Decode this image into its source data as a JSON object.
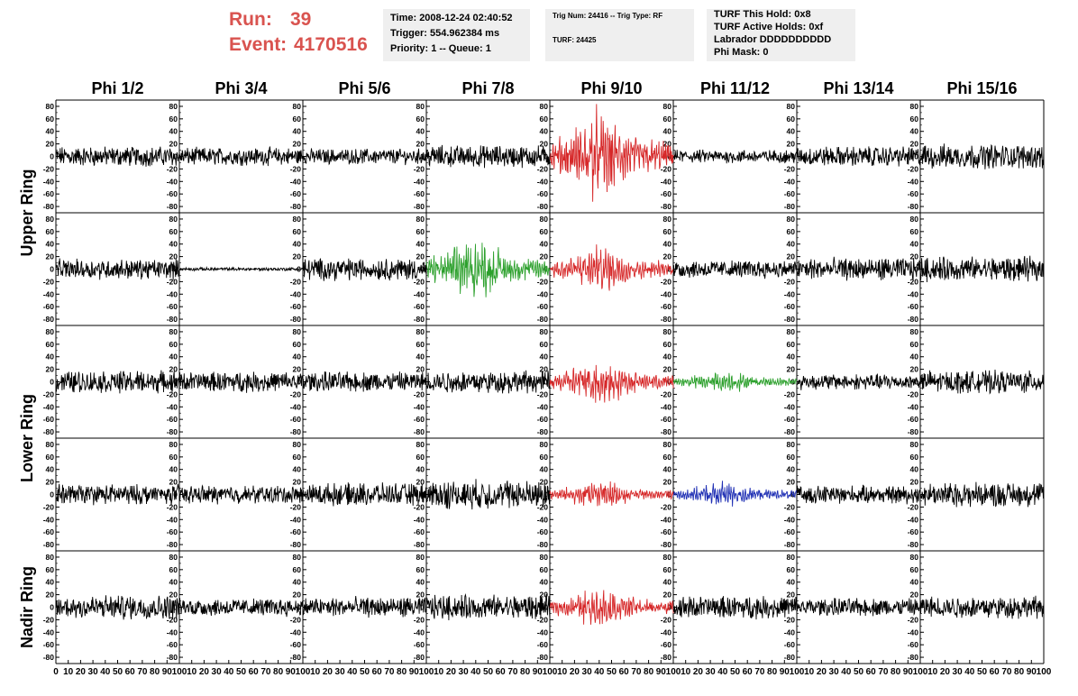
{
  "header": {
    "run_label": "Run:",
    "run_value": "39",
    "event_label": "Event:",
    "event_value": "4170516",
    "time": "Time: 2008-12-24 02:40:52",
    "trigger": "Trigger: 554.962384 ms",
    "priority": "Priority: 1 -- Queue: 1",
    "trig_num": "Trig Num: 24416 -- Trig Type: RF",
    "turf": "TURF: 24425",
    "turf_hold": "TURF This Hold: 0x8",
    "turf_active": "TURF Active Holds: 0xf",
    "labrador": "Labrador DDDDDDDDDD",
    "phi_mask": "Phi Mask: 0"
  },
  "colors": {
    "header_red": "#d9534f",
    "info_bg": "#efefef",
    "trace_black": "#000000",
    "trace_red": "#d62728",
    "trace_green": "#2ca02c",
    "trace_blue": "#1f2fb4"
  },
  "chart_data": {
    "type": "line",
    "columns": [
      "Phi 1/2",
      "Phi 3/4",
      "Phi 5/6",
      "Phi 7/8",
      "Phi 9/10",
      "Phi 11/12",
      "Phi 13/14",
      "Phi 15/16"
    ],
    "row_groups": [
      {
        "label": "Upper Ring",
        "rows": 2
      },
      {
        "label": "Lower Ring",
        "rows": 2
      },
      {
        "label": "Nadir Ring",
        "rows": 1
      }
    ],
    "x_range": [
      0,
      100
    ],
    "x_ticks": [
      "0",
      "10",
      "20",
      "30",
      "40",
      "50",
      "60",
      "70",
      "80",
      "90",
      "100"
    ],
    "y_range": [
      -90,
      90
    ],
    "y_ticks": [
      "80",
      "60",
      "40",
      "20",
      "0",
      "-20",
      "-40",
      "-60",
      "-80"
    ],
    "panels": [
      {
        "row": 0,
        "col": 0,
        "color": "black",
        "amplitude": 18,
        "envelope": "flat"
      },
      {
        "row": 0,
        "col": 1,
        "color": "black",
        "amplitude": 16,
        "envelope": "flat"
      },
      {
        "row": 0,
        "col": 2,
        "color": "black",
        "amplitude": 14,
        "envelope": "flat"
      },
      {
        "row": 0,
        "col": 3,
        "color": "black",
        "amplitude": 20,
        "envelope": "flat"
      },
      {
        "row": 0,
        "col": 4,
        "color": "red",
        "amplitude": 60,
        "envelope": "burst"
      },
      {
        "row": 0,
        "col": 5,
        "color": "black",
        "amplitude": 12,
        "envelope": "flat"
      },
      {
        "row": 0,
        "col": 6,
        "color": "black",
        "amplitude": 18,
        "envelope": "flat"
      },
      {
        "row": 0,
        "col": 7,
        "color": "black",
        "amplitude": 22,
        "envelope": "flat"
      },
      {
        "row": 1,
        "col": 0,
        "color": "black",
        "amplitude": 18,
        "envelope": "flat"
      },
      {
        "row": 1,
        "col": 1,
        "color": "black",
        "amplitude": 3,
        "envelope": "flat"
      },
      {
        "row": 1,
        "col": 2,
        "color": "black",
        "amplitude": 20,
        "envelope": "flat"
      },
      {
        "row": 1,
        "col": 3,
        "color": "green",
        "amplitude": 40,
        "envelope": "burst"
      },
      {
        "row": 1,
        "col": 4,
        "color": "red",
        "amplitude": 30,
        "envelope": "burst"
      },
      {
        "row": 1,
        "col": 5,
        "color": "black",
        "amplitude": 16,
        "envelope": "flat"
      },
      {
        "row": 1,
        "col": 6,
        "color": "black",
        "amplitude": 20,
        "envelope": "flat"
      },
      {
        "row": 1,
        "col": 7,
        "color": "black",
        "amplitude": 22,
        "envelope": "flat"
      },
      {
        "row": 2,
        "col": 0,
        "color": "black",
        "amplitude": 20,
        "envelope": "flat"
      },
      {
        "row": 2,
        "col": 1,
        "color": "black",
        "amplitude": 18,
        "envelope": "flat"
      },
      {
        "row": 2,
        "col": 2,
        "color": "black",
        "amplitude": 18,
        "envelope": "flat"
      },
      {
        "row": 2,
        "col": 3,
        "color": "black",
        "amplitude": 20,
        "envelope": "flat"
      },
      {
        "row": 2,
        "col": 4,
        "color": "red",
        "amplitude": 30,
        "envelope": "burst"
      },
      {
        "row": 2,
        "col": 5,
        "color": "green",
        "amplitude": 14,
        "envelope": "burst"
      },
      {
        "row": 2,
        "col": 6,
        "color": "black",
        "amplitude": 14,
        "envelope": "flat"
      },
      {
        "row": 2,
        "col": 7,
        "color": "black",
        "amplitude": 20,
        "envelope": "flat"
      },
      {
        "row": 3,
        "col": 0,
        "color": "black",
        "amplitude": 18,
        "envelope": "flat"
      },
      {
        "row": 3,
        "col": 1,
        "color": "black",
        "amplitude": 16,
        "envelope": "flat"
      },
      {
        "row": 3,
        "col": 2,
        "color": "black",
        "amplitude": 20,
        "envelope": "flat"
      },
      {
        "row": 3,
        "col": 3,
        "color": "black",
        "amplitude": 26,
        "envelope": "flat"
      },
      {
        "row": 3,
        "col": 4,
        "color": "red",
        "amplitude": 18,
        "envelope": "burst"
      },
      {
        "row": 3,
        "col": 5,
        "color": "blue",
        "amplitude": 16,
        "envelope": "burst"
      },
      {
        "row": 3,
        "col": 6,
        "color": "black",
        "amplitude": 16,
        "envelope": "flat"
      },
      {
        "row": 3,
        "col": 7,
        "color": "black",
        "amplitude": 22,
        "envelope": "flat"
      },
      {
        "row": 4,
        "col": 0,
        "color": "black",
        "amplitude": 22,
        "envelope": "flat"
      },
      {
        "row": 4,
        "col": 1,
        "color": "black",
        "amplitude": 16,
        "envelope": "flat"
      },
      {
        "row": 4,
        "col": 2,
        "color": "black",
        "amplitude": 18,
        "envelope": "flat"
      },
      {
        "row": 4,
        "col": 3,
        "color": "black",
        "amplitude": 22,
        "envelope": "flat"
      },
      {
        "row": 4,
        "col": 4,
        "color": "red",
        "amplitude": 26,
        "envelope": "burst"
      },
      {
        "row": 4,
        "col": 5,
        "color": "black",
        "amplitude": 20,
        "envelope": "flat"
      },
      {
        "row": 4,
        "col": 6,
        "color": "black",
        "amplitude": 16,
        "envelope": "flat"
      },
      {
        "row": 4,
        "col": 7,
        "color": "black",
        "amplitude": 20,
        "envelope": "flat"
      }
    ]
  }
}
